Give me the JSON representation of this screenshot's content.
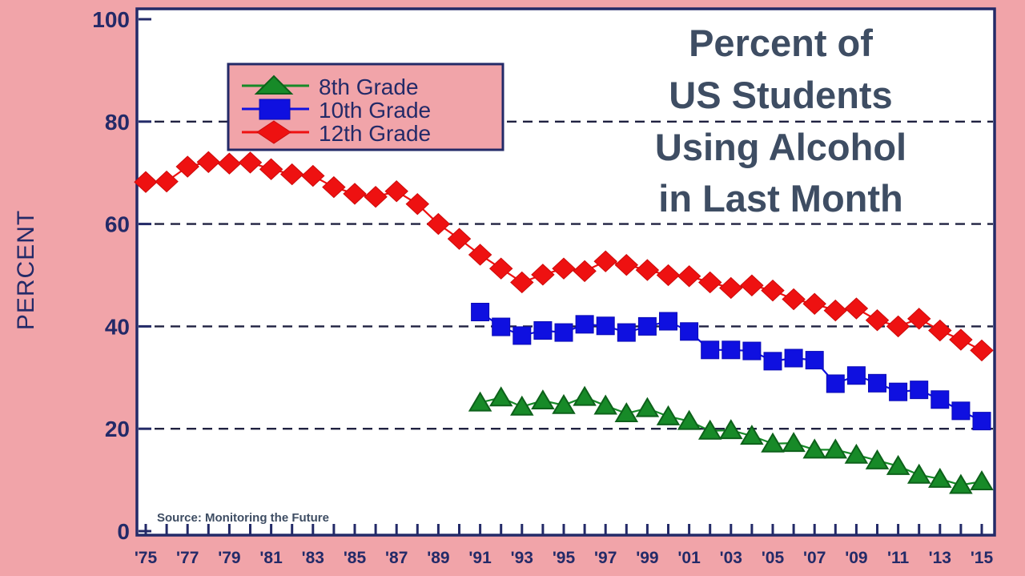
{
  "page": {
    "background_color": "#f1a4a9",
    "plot_background": "#ffffff",
    "axis_color": "#232a68"
  },
  "title": {
    "lines": [
      "Percent of",
      "US Students",
      "Using Alcohol",
      "in Last Month"
    ],
    "color": "#3e4d63"
  },
  "source": {
    "text": "Source: Monitoring the Future"
  },
  "y_axis": {
    "label": "PERCENT",
    "tick_labels": [
      "0",
      "20",
      "40",
      "60",
      "80",
      "100"
    ],
    "tick_values": [
      0,
      20,
      40,
      60,
      80,
      100
    ],
    "grid_values": [
      20,
      40,
      60,
      80
    ]
  },
  "x_axis": {
    "labels": [
      "'75",
      "'77",
      "'79",
      "'81",
      "'83",
      "'85",
      "'87",
      "'89",
      "'91",
      "'93",
      "'95",
      "'97",
      "'99",
      "'01",
      "'03",
      "'05",
      "'07",
      "'09",
      "'11",
      "'13",
      "'15"
    ],
    "label_years": [
      1975,
      1977,
      1979,
      1981,
      1983,
      1985,
      1987,
      1989,
      1991,
      1993,
      1995,
      1997,
      1999,
      2001,
      2003,
      2005,
      2007,
      2009,
      2011,
      2013,
      2015
    ],
    "minor_tick_every_year": true,
    "first_year": 1975,
    "last_year": 2015
  },
  "legend": {
    "items": [
      {
        "label": "8th Grade",
        "marker": "triangle",
        "color": "#178a28"
      },
      {
        "label": "10th Grade",
        "marker": "square",
        "color": "#0f10e0"
      },
      {
        "label": "12th Grade",
        "marker": "diamond",
        "color": "#ee1111"
      }
    ]
  },
  "chart_data": {
    "type": "line",
    "title": "Percent of US Students Using Alcohol in Last Month",
    "ylabel": "PERCENT",
    "ylim": [
      0,
      100
    ],
    "xlim": [
      1975,
      2015
    ],
    "grid": "horizontal dashed lines at 20, 40, 60, 80",
    "legend_position": "top-left",
    "series": [
      {
        "name": "8th Grade",
        "marker": "triangle",
        "color": "#178a28",
        "edge_color": "#0d611a",
        "start_year": 1991,
        "values": [
          25.1,
          26.1,
          24.3,
          25.5,
          24.6,
          26.2,
          24.5,
          23.0,
          24.0,
          22.4,
          21.5,
          19.6,
          19.7,
          18.6,
          17.1,
          17.2,
          15.9,
          15.9,
          14.9,
          13.8,
          12.7,
          11.0,
          10.2,
          9.0,
          9.7
        ]
      },
      {
        "name": "10th Grade",
        "marker": "square",
        "color": "#0f10e0",
        "edge_color": "#0b0bb4",
        "start_year": 1991,
        "values": [
          42.8,
          39.9,
          38.2,
          39.2,
          38.8,
          40.4,
          40.1,
          38.8,
          40.0,
          41.0,
          39.0,
          35.4,
          35.4,
          35.2,
          33.2,
          33.8,
          33.4,
          28.8,
          30.4,
          28.9,
          27.2,
          27.6,
          25.7,
          23.5,
          21.5
        ]
      },
      {
        "name": "12th Grade",
        "marker": "diamond",
        "color": "#ee1111",
        "edge_color": "#cc0b0b",
        "start_year": 1975,
        "values": [
          68.2,
          68.3,
          71.2,
          72.1,
          71.8,
          72.0,
          70.7,
          69.7,
          69.4,
          67.2,
          65.9,
          65.3,
          66.4,
          63.9,
          60.0,
          57.1,
          54.0,
          51.3,
          48.6,
          50.1,
          51.3,
          50.8,
          52.7,
          52.0,
          51.0,
          50.0,
          49.8,
          48.6,
          47.5,
          48.0,
          47.0,
          45.3,
          44.4,
          43.1,
          43.5,
          41.2,
          40.0,
          41.5,
          39.2,
          37.4,
          35.3
        ]
      }
    ]
  }
}
